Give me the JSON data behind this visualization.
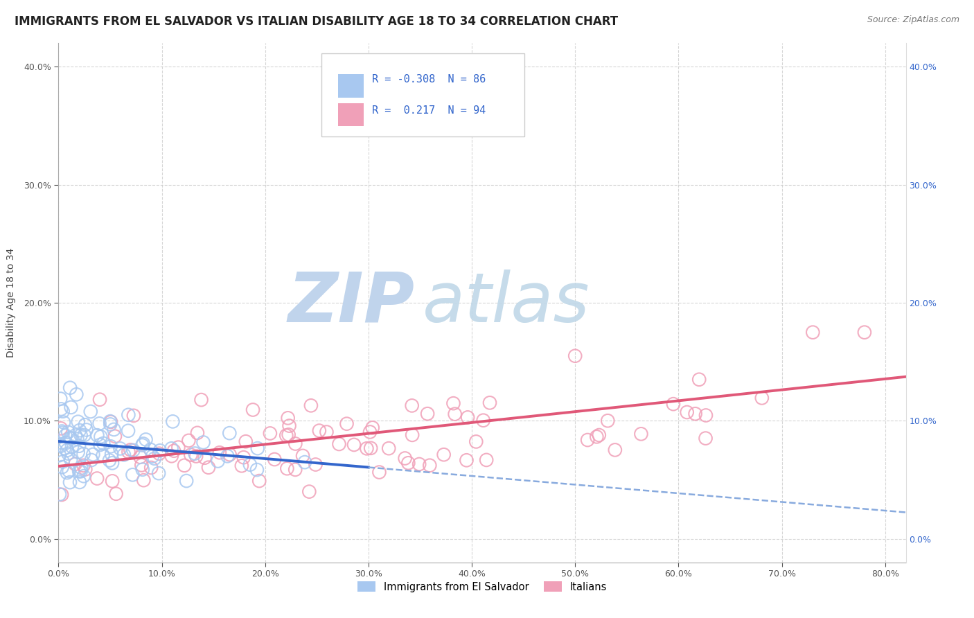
{
  "title": "IMMIGRANTS FROM EL SALVADOR VS ITALIAN DISABILITY AGE 18 TO 34 CORRELATION CHART",
  "source": "Source: ZipAtlas.com",
  "ylabel_label": "Disability Age 18 to 34",
  "legend_label1": "Immigrants from El Salvador",
  "legend_label2": "Italians",
  "R1": "-0.308",
  "N1": "86",
  "R2": "0.217",
  "N2": "94",
  "color_blue": "#A8C8F0",
  "color_pink": "#F0A0B8",
  "color_trendline_blue": "#3366CC",
  "color_trendline_pink": "#E05878",
  "color_trendline_blue_dash": "#88AADE",
  "xlim": [
    0.0,
    0.82
  ],
  "ylim": [
    -0.02,
    0.42
  ],
  "yticks": [
    0.0,
    0.1,
    0.2,
    0.3,
    0.4
  ],
  "xticks": [
    0.0,
    0.1,
    0.2,
    0.3,
    0.4,
    0.5,
    0.6,
    0.7,
    0.8
  ],
  "grid_color": "#CCCCCC",
  "background_color": "#FFFFFF",
  "title_fontsize": 12,
  "axis_label_fontsize": 10,
  "watermark_zip_color": "#C0D4EC",
  "watermark_atlas_color": "#C0D8E8"
}
